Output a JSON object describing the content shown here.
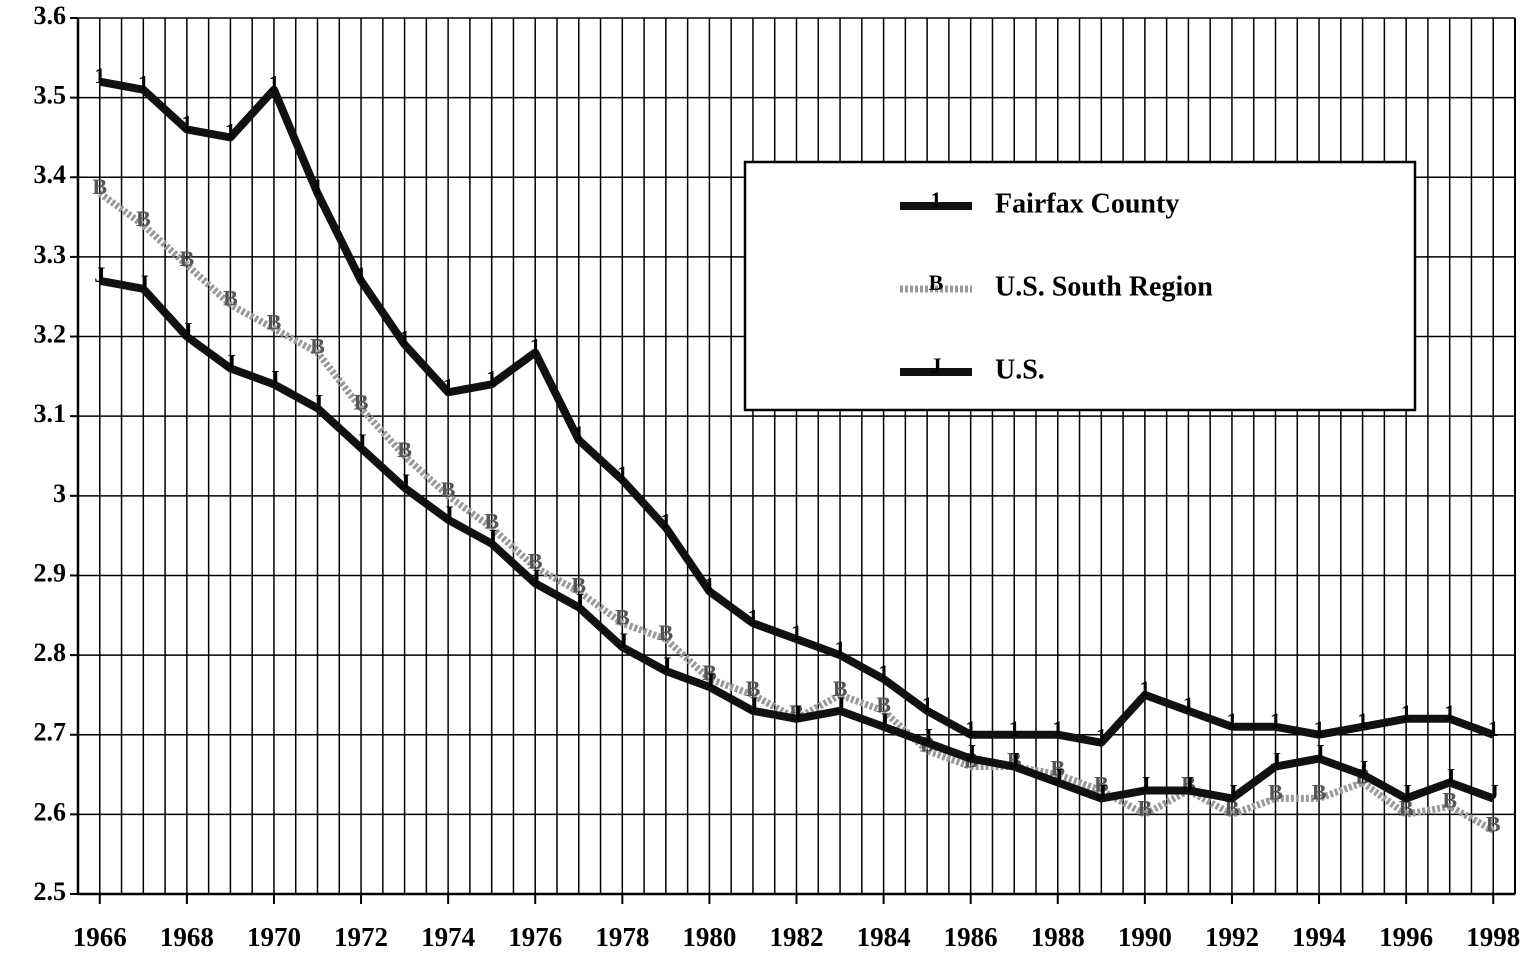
{
  "chart_data": {
    "type": "line",
    "x": [
      1966,
      1967,
      1968,
      1969,
      1970,
      1971,
      1972,
      1973,
      1974,
      1975,
      1976,
      1977,
      1978,
      1979,
      1980,
      1981,
      1982,
      1983,
      1984,
      1985,
      1986,
      1987,
      1988,
      1989,
      1990,
      1991,
      1992,
      1993,
      1994,
      1995,
      1996,
      1997,
      1998
    ],
    "xlim": [
      1965.5,
      1998.5
    ],
    "xticks": [
      1966,
      1968,
      1970,
      1972,
      1974,
      1976,
      1978,
      1980,
      1982,
      1984,
      1986,
      1988,
      1990,
      1992,
      1994,
      1996,
      1998
    ],
    "ylim": [
      2.5,
      3.6
    ],
    "yticks": [
      2.5,
      2.6,
      2.7,
      2.8,
      2.9,
      3,
      3.1,
      3.2,
      3.3,
      3.4,
      3.5,
      3.6
    ],
    "grid": true,
    "legend": "upper right",
    "series": [
      {
        "name": "Fairfax County",
        "color": "#111111",
        "marker": "1",
        "values": [
          3.52,
          3.51,
          3.46,
          3.45,
          3.51,
          3.38,
          3.27,
          3.19,
          3.13,
          3.14,
          3.18,
          3.07,
          3.02,
          2.96,
          2.88,
          2.84,
          2.82,
          2.8,
          2.77,
          2.73,
          2.7,
          2.7,
          2.7,
          2.69,
          2.75,
          2.73,
          2.71,
          2.71,
          2.7,
          2.71,
          2.72,
          2.72,
          2.7
        ]
      },
      {
        "name": "U.S. South Region",
        "color": "#9a9a9a",
        "marker": "B",
        "values": [
          3.38,
          3.34,
          3.29,
          3.24,
          3.21,
          3.18,
          3.11,
          3.05,
          3.0,
          2.96,
          2.91,
          2.88,
          2.84,
          2.82,
          2.77,
          2.75,
          2.72,
          2.75,
          2.73,
          2.68,
          2.66,
          2.66,
          2.65,
          2.63,
          2.6,
          2.63,
          2.6,
          2.62,
          2.62,
          2.64,
          2.6,
          2.61,
          2.58
        ]
      },
      {
        "name": "U.S.",
        "color": "#111111",
        "marker": "J",
        "values": [
          3.27,
          3.26,
          3.2,
          3.16,
          3.14,
          3.11,
          3.06,
          3.01,
          2.97,
          2.94,
          2.89,
          2.86,
          2.81,
          2.78,
          2.76,
          2.73,
          2.72,
          2.73,
          2.71,
          2.69,
          2.67,
          2.66,
          2.64,
          2.62,
          2.63,
          2.63,
          2.62,
          2.66,
          2.67,
          2.65,
          2.62,
          2.64,
          2.62
        ]
      }
    ]
  }
}
